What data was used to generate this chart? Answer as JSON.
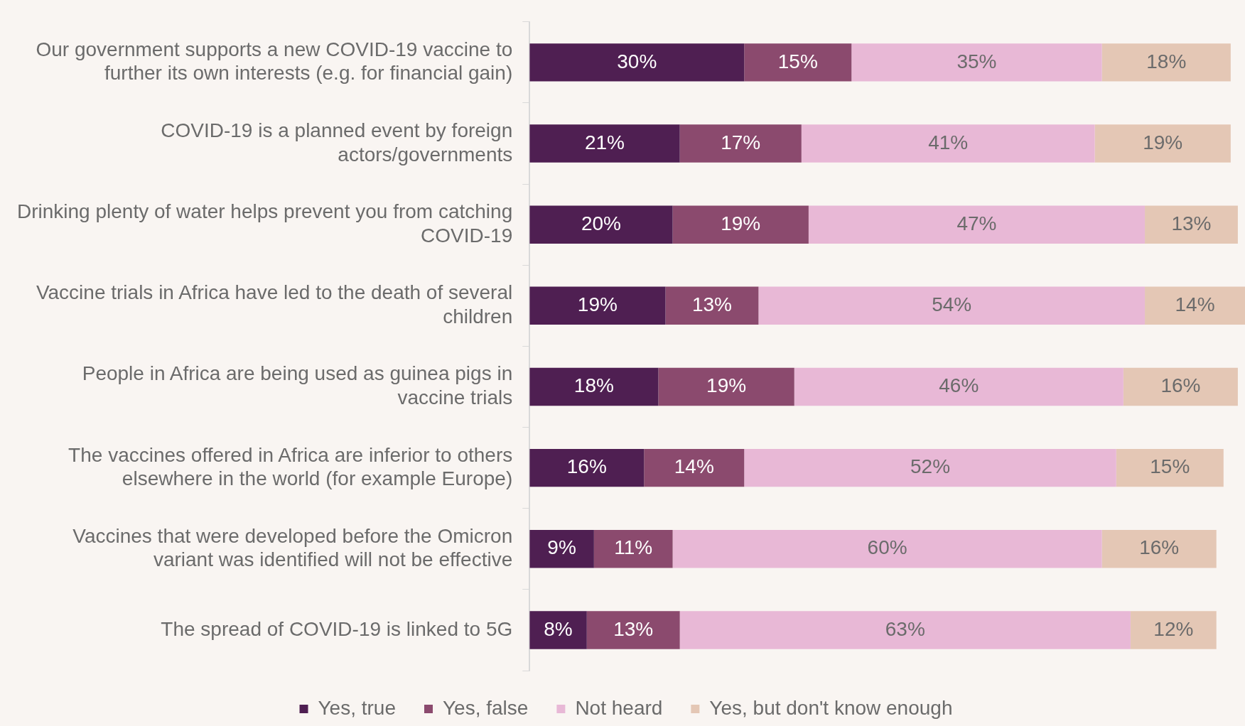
{
  "chart_data": {
    "type": "bar",
    "orientation": "horizontal",
    "stacked": true,
    "legend": "bottom",
    "grid": false,
    "tick_labels": "y",
    "categories": [
      "Our government supports a new COVID-19 vaccine to further its own interests (e.g. for financial gain)",
      "COVID-19 is a planned event by foreign actors/governments",
      "Drinking plenty of water helps prevent you from catching COVID-19",
      "Vaccine trials in Africa have led to the death of several children",
      "People in Africa are being used as guinea pigs in vaccine trials",
      "The vaccines offered in Africa are inferior to others elsewhere in the world (for example Europe)",
      "Vaccines that were developed before the Omicron variant was identified will not be effective",
      "The spread of COVID-19 is linked to 5G"
    ],
    "series": [
      {
        "name": "Yes, true",
        "color": "#4f1f52",
        "values": [
          30,
          21,
          20,
          19,
          18,
          16,
          9,
          8
        ],
        "value_labels": [
          "30%",
          "21%",
          "20%",
          "19%",
          "18%",
          "16%",
          "9%",
          "8%"
        ]
      },
      {
        "name": "Yes, false",
        "color": "#8b4a6e",
        "values": [
          15,
          17,
          19,
          13,
          19,
          14,
          11,
          13
        ],
        "value_labels": [
          "15%",
          "17%",
          "19%",
          "13%",
          "19%",
          "14%",
          "11%",
          "13%"
        ]
      },
      {
        "name": "Not heard",
        "color": "#e8b8d6",
        "values": [
          35,
          41,
          47,
          54,
          46,
          52,
          60,
          63
        ],
        "value_labels": [
          "35%",
          "41%",
          "47%",
          "54%",
          "46%",
          "52%",
          "60%",
          "63%"
        ]
      },
      {
        "name": "Yes, but don't know enough",
        "color": "#e4c7b5",
        "values": [
          18,
          19,
          13,
          14,
          16,
          15,
          16,
          12
        ],
        "value_labels": [
          "18%",
          "19%",
          "13%",
          "14%",
          "16%",
          "15%",
          "16%",
          "12%"
        ]
      }
    ]
  }
}
